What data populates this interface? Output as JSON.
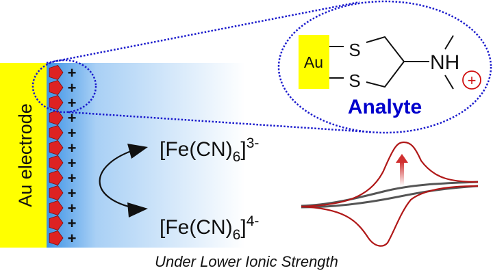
{
  "electrode": {
    "label": "Au electrode",
    "color": "#ffff00"
  },
  "surface": {
    "charge_symbol": "+",
    "count": 12,
    "pentagon_color": "#dd2222"
  },
  "inset": {
    "au_label": "Au",
    "s_top": "S",
    "s_bottom": "S",
    "amine": "NH",
    "charge": "+",
    "title": "Analyte",
    "title_color": "#0000cc",
    "outline_color": "#1a1acc"
  },
  "redox": {
    "oxidized": {
      "base": "[Fe(CN)",
      "sub": "6",
      "close": "]",
      "sup": "3-"
    },
    "reduced": {
      "base": "[Fe(CN)",
      "sub": "6",
      "close": "]",
      "sup": "4-"
    }
  },
  "cv": {
    "signal_color": "#b01818",
    "baseline_color": "#555555"
  },
  "caption": "Under Lower Ionic Strength"
}
